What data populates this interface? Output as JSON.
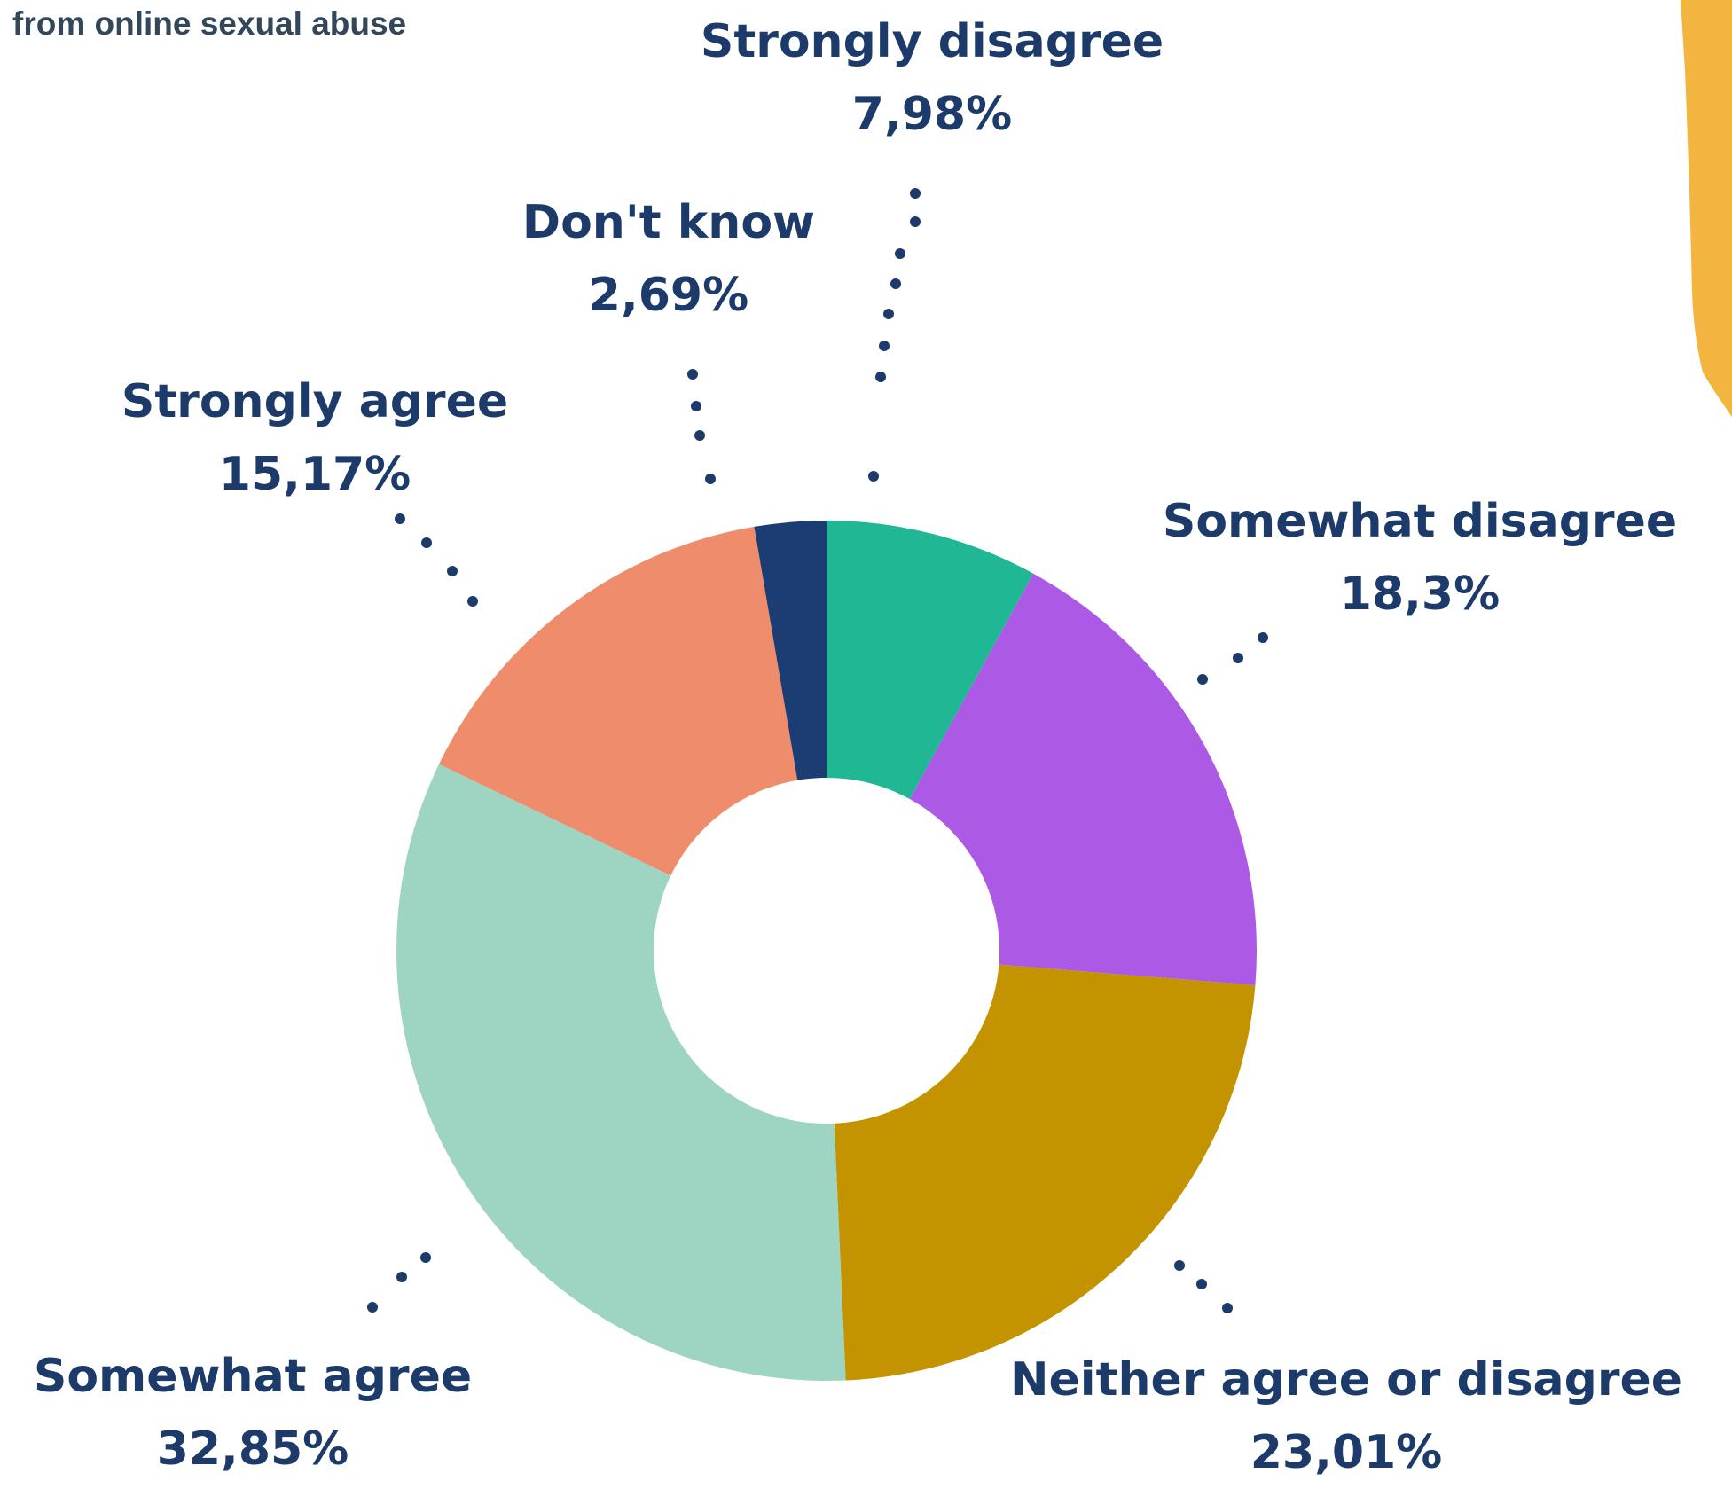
{
  "header": {
    "text": "from online sexual abuse"
  },
  "colors": {
    "label_text": "#1d3b6a",
    "dots": "#1d3b6a",
    "accent_shape": "#f3b53f"
  },
  "chart_data": {
    "type": "pie",
    "donut": true,
    "start": "top",
    "direction": "clockwise",
    "slices": [
      {
        "label": "Strongly disagree",
        "value": 7.98,
        "value_text": "7,98%",
        "color": "#20b894"
      },
      {
        "label": "Somewhat disagree",
        "value": 18.3,
        "value_text": "18,3%",
        "color": "#ac5ae5"
      },
      {
        "label": "Neither agree or disagree",
        "value": 23.01,
        "value_text": "23,01%",
        "color": "#c49300"
      },
      {
        "label": "Somewhat agree",
        "value": 32.85,
        "value_text": "32,85%",
        "color": "#9dd4c2"
      },
      {
        "label": "Strongly agree",
        "value": 15.17,
        "value_text": "15,17%",
        "color": "#ef8c6c"
      },
      {
        "label": "Don't know",
        "value": 2.69,
        "value_text": "2,69%",
        "color": "#1b3d73"
      }
    ]
  }
}
